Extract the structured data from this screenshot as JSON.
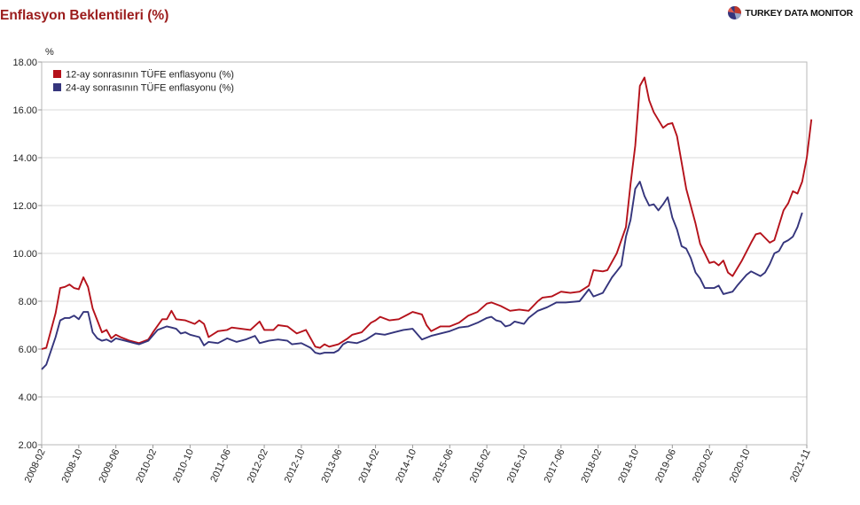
{
  "header": {
    "title": "Enflasyon Beklentileri (%)",
    "brand": "TURKEY DATA MONITOR"
  },
  "chart_data": {
    "type": "line",
    "yunit": "%",
    "ylim": [
      2.0,
      18.0
    ],
    "yticks": [
      "2.00",
      "4.00",
      "6.00",
      "8.00",
      "10.00",
      "12.00",
      "14.00",
      "16.00",
      "18.00"
    ],
    "x_tick_labels": [
      "2008-02",
      "2008-10",
      "2009-06",
      "2010-02",
      "2010-10",
      "2011-06",
      "2012-02",
      "2012-10",
      "2013-06",
      "2014-02",
      "2014-10",
      "2015-06",
      "2016-02",
      "2016-10",
      "2017-06",
      "2018-02",
      "2018-10",
      "2019-06",
      "2020-02",
      "2020-10",
      "2021-11"
    ],
    "x_start": "2008-02",
    "x_end": "2021-11",
    "grid": true,
    "legend_position": "top-left",
    "colors": {
      "series1": "#b5121b",
      "series2": "#35357c"
    },
    "series": [
      {
        "name": "12-ay sonrasının TÜFE enflasyonu (%)",
        "anchors": [
          [
            "2008-02",
            6.0
          ],
          [
            "2008-03",
            6.05
          ],
          [
            "2008-05",
            7.5
          ],
          [
            "2008-06",
            8.55
          ],
          [
            "2008-07",
            8.6
          ],
          [
            "2008-08",
            8.7
          ],
          [
            "2008-09",
            8.55
          ],
          [
            "2008-10",
            8.5
          ],
          [
            "2008-11",
            9.0
          ],
          [
            "2008-12",
            8.6
          ],
          [
            "2009-01",
            7.7
          ],
          [
            "2009-03",
            6.7
          ],
          [
            "2009-04",
            6.8
          ],
          [
            "2009-05",
            6.45
          ],
          [
            "2009-06",
            6.6
          ],
          [
            "2009-07",
            6.5
          ],
          [
            "2009-09",
            6.35
          ],
          [
            "2009-11",
            6.25
          ],
          [
            "2010-01",
            6.4
          ],
          [
            "2010-02",
            6.7
          ],
          [
            "2010-04",
            7.25
          ],
          [
            "2010-05",
            7.25
          ],
          [
            "2010-06",
            7.6
          ],
          [
            "2010-07",
            7.25
          ],
          [
            "2010-09",
            7.2
          ],
          [
            "2010-11",
            7.05
          ],
          [
            "2010-12",
            7.2
          ],
          [
            "2011-01",
            7.05
          ],
          [
            "2011-02",
            6.5
          ],
          [
            "2011-04",
            6.75
          ],
          [
            "2011-06",
            6.8
          ],
          [
            "2011-07",
            6.9
          ],
          [
            "2011-09",
            6.85
          ],
          [
            "2011-11",
            6.8
          ],
          [
            "2012-01",
            7.15
          ],
          [
            "2012-02",
            6.8
          ],
          [
            "2012-04",
            6.8
          ],
          [
            "2012-05",
            7.0
          ],
          [
            "2012-07",
            6.95
          ],
          [
            "2012-09",
            6.65
          ],
          [
            "2012-11",
            6.8
          ],
          [
            "2013-01",
            6.1
          ],
          [
            "2013-02",
            6.05
          ],
          [
            "2013-03",
            6.2
          ],
          [
            "2013-04",
            6.1
          ],
          [
            "2013-06",
            6.2
          ],
          [
            "2013-08",
            6.45
          ],
          [
            "2013-09",
            6.6
          ],
          [
            "2013-11",
            6.7
          ],
          [
            "2014-01",
            7.1
          ],
          [
            "2014-02",
            7.2
          ],
          [
            "2014-03",
            7.35
          ],
          [
            "2014-05",
            7.2
          ],
          [
            "2014-07",
            7.25
          ],
          [
            "2014-09",
            7.45
          ],
          [
            "2014-10",
            7.55
          ],
          [
            "2014-12",
            7.45
          ],
          [
            "2015-01",
            7.0
          ],
          [
            "2015-02",
            6.75
          ],
          [
            "2015-04",
            6.95
          ],
          [
            "2015-06",
            6.95
          ],
          [
            "2015-08",
            7.1
          ],
          [
            "2015-10",
            7.4
          ],
          [
            "2015-12",
            7.55
          ],
          [
            "2016-02",
            7.9
          ],
          [
            "2016-03",
            7.95
          ],
          [
            "2016-05",
            7.8
          ],
          [
            "2016-07",
            7.6
          ],
          [
            "2016-09",
            7.65
          ],
          [
            "2016-11",
            7.6
          ],
          [
            "2017-01",
            8.0
          ],
          [
            "2017-02",
            8.15
          ],
          [
            "2017-04",
            8.2
          ],
          [
            "2017-06",
            8.4
          ],
          [
            "2017-08",
            8.35
          ],
          [
            "2017-10",
            8.4
          ],
          [
            "2017-12",
            8.65
          ],
          [
            "2018-01",
            9.3
          ],
          [
            "2018-03",
            9.25
          ],
          [
            "2018-04",
            9.3
          ],
          [
            "2018-06",
            10.0
          ],
          [
            "2018-08",
            11.1
          ],
          [
            "2018-09",
            12.9
          ],
          [
            "2018-10",
            14.5
          ],
          [
            "2018-11",
            17.0
          ],
          [
            "2018-12",
            17.35
          ],
          [
            "2019-01",
            16.4
          ],
          [
            "2019-02",
            15.9
          ],
          [
            "2019-04",
            15.25
          ],
          [
            "2019-05",
            15.4
          ],
          [
            "2019-06",
            15.45
          ],
          [
            "2019-07",
            14.9
          ],
          [
            "2019-09",
            12.7
          ],
          [
            "2019-11",
            11.25
          ],
          [
            "2019-12",
            10.4
          ],
          [
            "2020-02",
            9.6
          ],
          [
            "2020-03",
            9.65
          ],
          [
            "2020-04",
            9.5
          ],
          [
            "2020-05",
            9.7
          ],
          [
            "2020-06",
            9.2
          ],
          [
            "2020-07",
            9.05
          ],
          [
            "2020-09",
            9.7
          ],
          [
            "2020-11",
            10.45
          ],
          [
            "2020-12",
            10.8
          ],
          [
            "2021-01",
            10.85
          ],
          [
            "2021-03",
            10.45
          ],
          [
            "2021-04",
            10.55
          ],
          [
            "2021-06",
            11.8
          ],
          [
            "2021-07",
            12.1
          ],
          [
            "2021-08",
            12.6
          ],
          [
            "2021-09",
            12.5
          ],
          [
            "2021-10",
            13.0
          ],
          [
            "2021-11",
            14.0
          ],
          [
            "2021-12",
            15.6
          ]
        ]
      },
      {
        "name": "24-ay sonrasının TÜFE enflasyonu (%)",
        "anchors": [
          [
            "2008-02",
            5.15
          ],
          [
            "2008-03",
            5.35
          ],
          [
            "2008-05",
            6.5
          ],
          [
            "2008-06",
            7.2
          ],
          [
            "2008-07",
            7.3
          ],
          [
            "2008-08",
            7.3
          ],
          [
            "2008-09",
            7.4
          ],
          [
            "2008-10",
            7.25
          ],
          [
            "2008-11",
            7.55
          ],
          [
            "2008-12",
            7.55
          ],
          [
            "2009-01",
            6.7
          ],
          [
            "2009-02",
            6.45
          ],
          [
            "2009-03",
            6.35
          ],
          [
            "2009-04",
            6.4
          ],
          [
            "2009-05",
            6.3
          ],
          [
            "2009-06",
            6.45
          ],
          [
            "2009-08",
            6.35
          ],
          [
            "2009-10",
            6.25
          ],
          [
            "2009-11",
            6.2
          ],
          [
            "2010-01",
            6.35
          ],
          [
            "2010-03",
            6.8
          ],
          [
            "2010-05",
            6.95
          ],
          [
            "2010-06",
            6.9
          ],
          [
            "2010-07",
            6.85
          ],
          [
            "2010-08",
            6.65
          ],
          [
            "2010-09",
            6.7
          ],
          [
            "2010-10",
            6.6
          ],
          [
            "2010-12",
            6.5
          ],
          [
            "2011-01",
            6.15
          ],
          [
            "2011-02",
            6.3
          ],
          [
            "2011-04",
            6.25
          ],
          [
            "2011-06",
            6.45
          ],
          [
            "2011-08",
            6.3
          ],
          [
            "2011-10",
            6.4
          ],
          [
            "2011-12",
            6.55
          ],
          [
            "2012-01",
            6.25
          ],
          [
            "2012-03",
            6.35
          ],
          [
            "2012-05",
            6.4
          ],
          [
            "2012-07",
            6.35
          ],
          [
            "2012-08",
            6.2
          ],
          [
            "2012-10",
            6.25
          ],
          [
            "2012-12",
            6.05
          ],
          [
            "2013-01",
            5.85
          ],
          [
            "2013-02",
            5.8
          ],
          [
            "2013-03",
            5.85
          ],
          [
            "2013-05",
            5.85
          ],
          [
            "2013-06",
            5.95
          ],
          [
            "2013-07",
            6.2
          ],
          [
            "2013-08",
            6.3
          ],
          [
            "2013-10",
            6.25
          ],
          [
            "2013-12",
            6.4
          ],
          [
            "2014-02",
            6.65
          ],
          [
            "2014-04",
            6.6
          ],
          [
            "2014-06",
            6.7
          ],
          [
            "2014-08",
            6.8
          ],
          [
            "2014-10",
            6.85
          ],
          [
            "2014-12",
            6.4
          ],
          [
            "2015-02",
            6.55
          ],
          [
            "2015-04",
            6.65
          ],
          [
            "2015-06",
            6.75
          ],
          [
            "2015-08",
            6.9
          ],
          [
            "2015-10",
            6.95
          ],
          [
            "2015-12",
            7.1
          ],
          [
            "2016-02",
            7.3
          ],
          [
            "2016-03",
            7.35
          ],
          [
            "2016-04",
            7.2
          ],
          [
            "2016-05",
            7.15
          ],
          [
            "2016-06",
            6.95
          ],
          [
            "2016-07",
            7.0
          ],
          [
            "2016-08",
            7.15
          ],
          [
            "2016-10",
            7.05
          ],
          [
            "2016-11",
            7.3
          ],
          [
            "2017-01",
            7.6
          ],
          [
            "2017-03",
            7.75
          ],
          [
            "2017-05",
            7.95
          ],
          [
            "2017-07",
            7.95
          ],
          [
            "2017-10",
            8.0
          ],
          [
            "2017-12",
            8.5
          ],
          [
            "2018-01",
            8.2
          ],
          [
            "2018-03",
            8.35
          ],
          [
            "2018-05",
            9.0
          ],
          [
            "2018-06",
            9.25
          ],
          [
            "2018-07",
            9.5
          ],
          [
            "2018-08",
            10.7
          ],
          [
            "2018-09",
            11.4
          ],
          [
            "2018-10",
            12.7
          ],
          [
            "2018-11",
            13.0
          ],
          [
            "2018-12",
            12.4
          ],
          [
            "2019-01",
            12.0
          ],
          [
            "2019-02",
            12.05
          ],
          [
            "2019-03",
            11.8
          ],
          [
            "2019-04",
            12.05
          ],
          [
            "2019-05",
            12.35
          ],
          [
            "2019-06",
            11.5
          ],
          [
            "2019-07",
            11.0
          ],
          [
            "2019-08",
            10.3
          ],
          [
            "2019-09",
            10.2
          ],
          [
            "2019-10",
            9.8
          ],
          [
            "2019-11",
            9.2
          ],
          [
            "2019-12",
            8.95
          ],
          [
            "2020-01",
            8.55
          ],
          [
            "2020-03",
            8.55
          ],
          [
            "2020-04",
            8.65
          ],
          [
            "2020-05",
            8.3
          ],
          [
            "2020-07",
            8.4
          ],
          [
            "2020-08",
            8.65
          ],
          [
            "2020-10",
            9.1
          ],
          [
            "2020-11",
            9.25
          ],
          [
            "2021-01",
            9.05
          ],
          [
            "2021-02",
            9.2
          ],
          [
            "2021-03",
            9.55
          ],
          [
            "2021-04",
            10.0
          ],
          [
            "2021-05",
            10.1
          ],
          [
            "2021-06",
            10.45
          ],
          [
            "2021-07",
            10.55
          ],
          [
            "2021-08",
            10.7
          ],
          [
            "2021-09",
            11.1
          ],
          [
            "2021-10",
            11.7
          ]
        ]
      }
    ]
  }
}
